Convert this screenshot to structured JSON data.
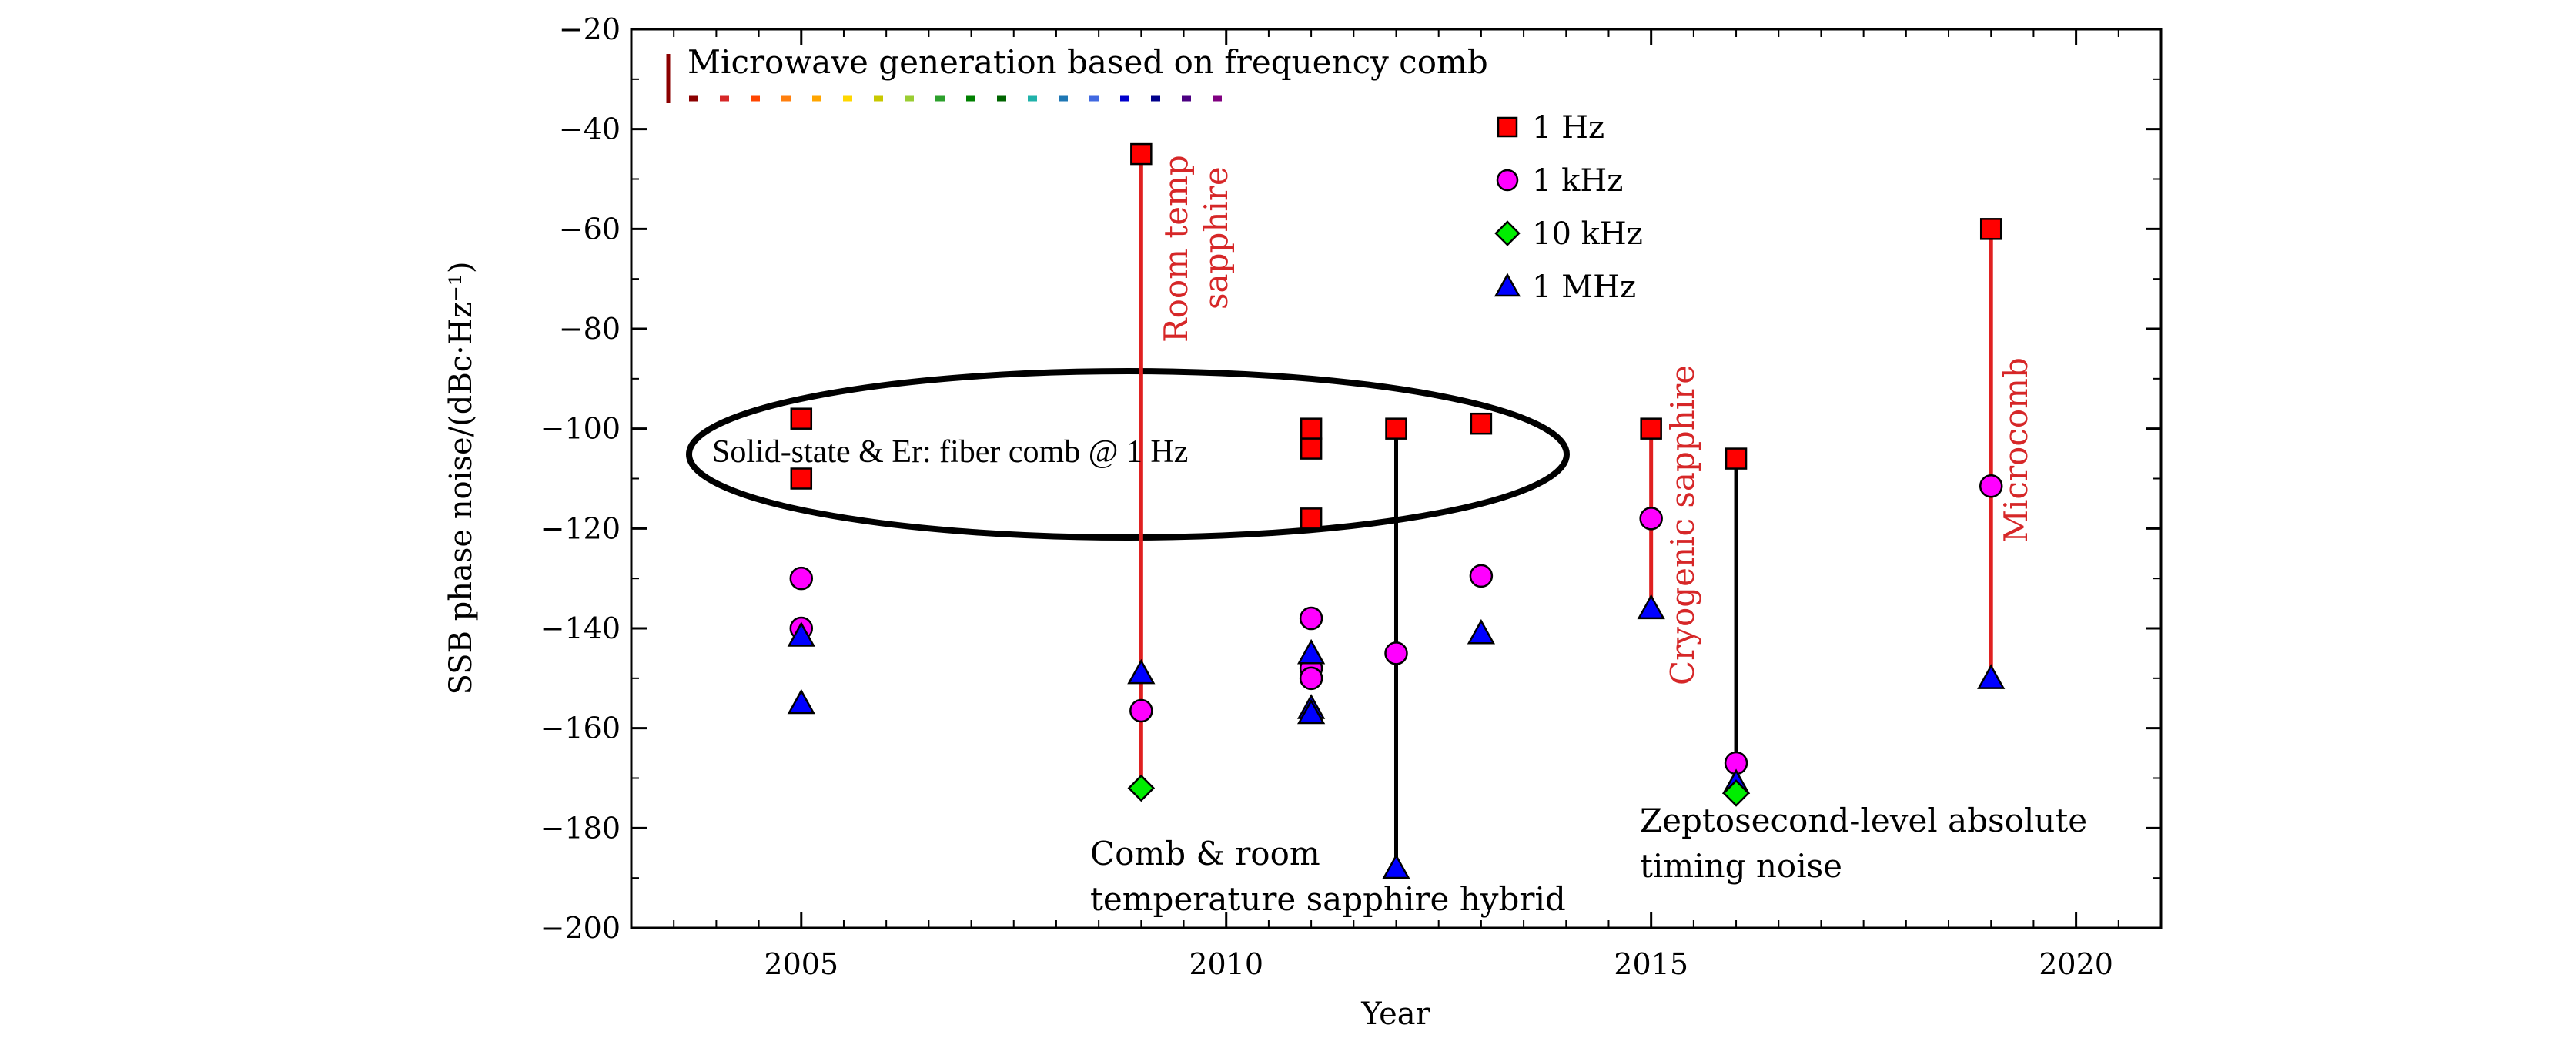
{
  "chart_data": {
    "type": "scatter",
    "title": "",
    "xlabel": "Year",
    "ylabel": "SSB phase noise/(dBc·Hz⁻¹)",
    "xlim": [
      2003,
      2021
    ],
    "ylim": [
      -200,
      -20
    ],
    "xticks": [
      2005,
      2010,
      2015,
      2020
    ],
    "xtick_labels": [
      "2005",
      "2010",
      "2015",
      "2020"
    ],
    "yticks": [
      -20,
      -40,
      -60,
      -80,
      -100,
      -120,
      -140,
      -160,
      -180,
      -200
    ],
    "ytick_labels": [
      "−20",
      "−40",
      "−60",
      "−80",
      "−100",
      "−120",
      "−140",
      "−160",
      "−180",
      "−200"
    ],
    "legend_position": "top-right",
    "grid": false,
    "series": [
      {
        "name": "1 Hz",
        "marker": "square",
        "color": "#ff0000",
        "points": [
          [
            2005,
            -98
          ],
          [
            2005,
            -110
          ],
          [
            2009,
            -45
          ],
          [
            2011,
            -100
          ],
          [
            2011,
            -104
          ],
          [
            2011,
            -118
          ],
          [
            2012,
            -100
          ],
          [
            2013,
            -99
          ],
          [
            2015,
            -100
          ],
          [
            2016,
            -106
          ],
          [
            2019,
            -60
          ]
        ]
      },
      {
        "name": "1 kHz",
        "marker": "circle",
        "color": "#ff00ff",
        "points": [
          [
            2005,
            -130
          ],
          [
            2005,
            -140
          ],
          [
            2009,
            -156.5
          ],
          [
            2011,
            -138
          ],
          [
            2011,
            -148
          ],
          [
            2011,
            -150
          ],
          [
            2012,
            -145
          ],
          [
            2013,
            -129.5
          ],
          [
            2015,
            -118
          ],
          [
            2016,
            -167
          ],
          [
            2019,
            -111.5
          ]
        ]
      },
      {
        "name": "10 kHz",
        "marker": "diamond",
        "color": "#00ee00",
        "points": [
          [
            2009,
            -172
          ],
          [
            2016,
            -173
          ]
        ]
      },
      {
        "name": "1 MHz",
        "marker": "triangle",
        "color": "#0000ff",
        "points": [
          [
            2005,
            -141.5
          ],
          [
            2005,
            -155
          ],
          [
            2009,
            -149
          ],
          [
            2011,
            -145
          ],
          [
            2011,
            -156
          ],
          [
            2011,
            -157
          ],
          [
            2012,
            -188
          ],
          [
            2013,
            -141
          ],
          [
            2015,
            -136
          ],
          [
            2016,
            -171
          ],
          [
            2019,
            -150
          ]
        ]
      }
    ],
    "connectors": [
      {
        "x": 2009,
        "y1": -45,
        "y2": -172,
        "color": "#e02020"
      },
      {
        "x": 2012,
        "y1": -100,
        "y2": -188,
        "color": "#000000"
      },
      {
        "x": 2015,
        "y1": -100,
        "y2": -136,
        "color": "#e02020"
      },
      {
        "x": 2016,
        "y1": -106,
        "y2": -173,
        "color": "#000000"
      },
      {
        "x": 2019,
        "y1": -60,
        "y2": -150,
        "color": "#e02020"
      }
    ],
    "annotations": {
      "header": "Microwave generation based on frequency comb",
      "room_temp_1": "Room temp",
      "room_temp_2": "sapphire",
      "ellipse_label": "Solid-state & Er: fiber comb @ 1 Hz",
      "cryogenic": "Cryogenic sapphire",
      "microcomb": "Microcomb",
      "comb_room_1": "Comb & room",
      "comb_room_2": "temperature sapphire hybrid",
      "zepto_1": "Zeptosecond-level absolute",
      "zepto_2": "timing noise"
    },
    "header_bar_colors": [
      "#8b0000",
      "#d62728",
      "#ff4500",
      "#ff7f0e",
      "#ffa500",
      "#ffd700",
      "#c8c800",
      "#9acd32",
      "#2ca02c",
      "#008000",
      "#006400",
      "#20b2aa",
      "#1f77b4",
      "#4169e1",
      "#0000cd",
      "#00008b",
      "#4b0082",
      "#800080"
    ]
  }
}
